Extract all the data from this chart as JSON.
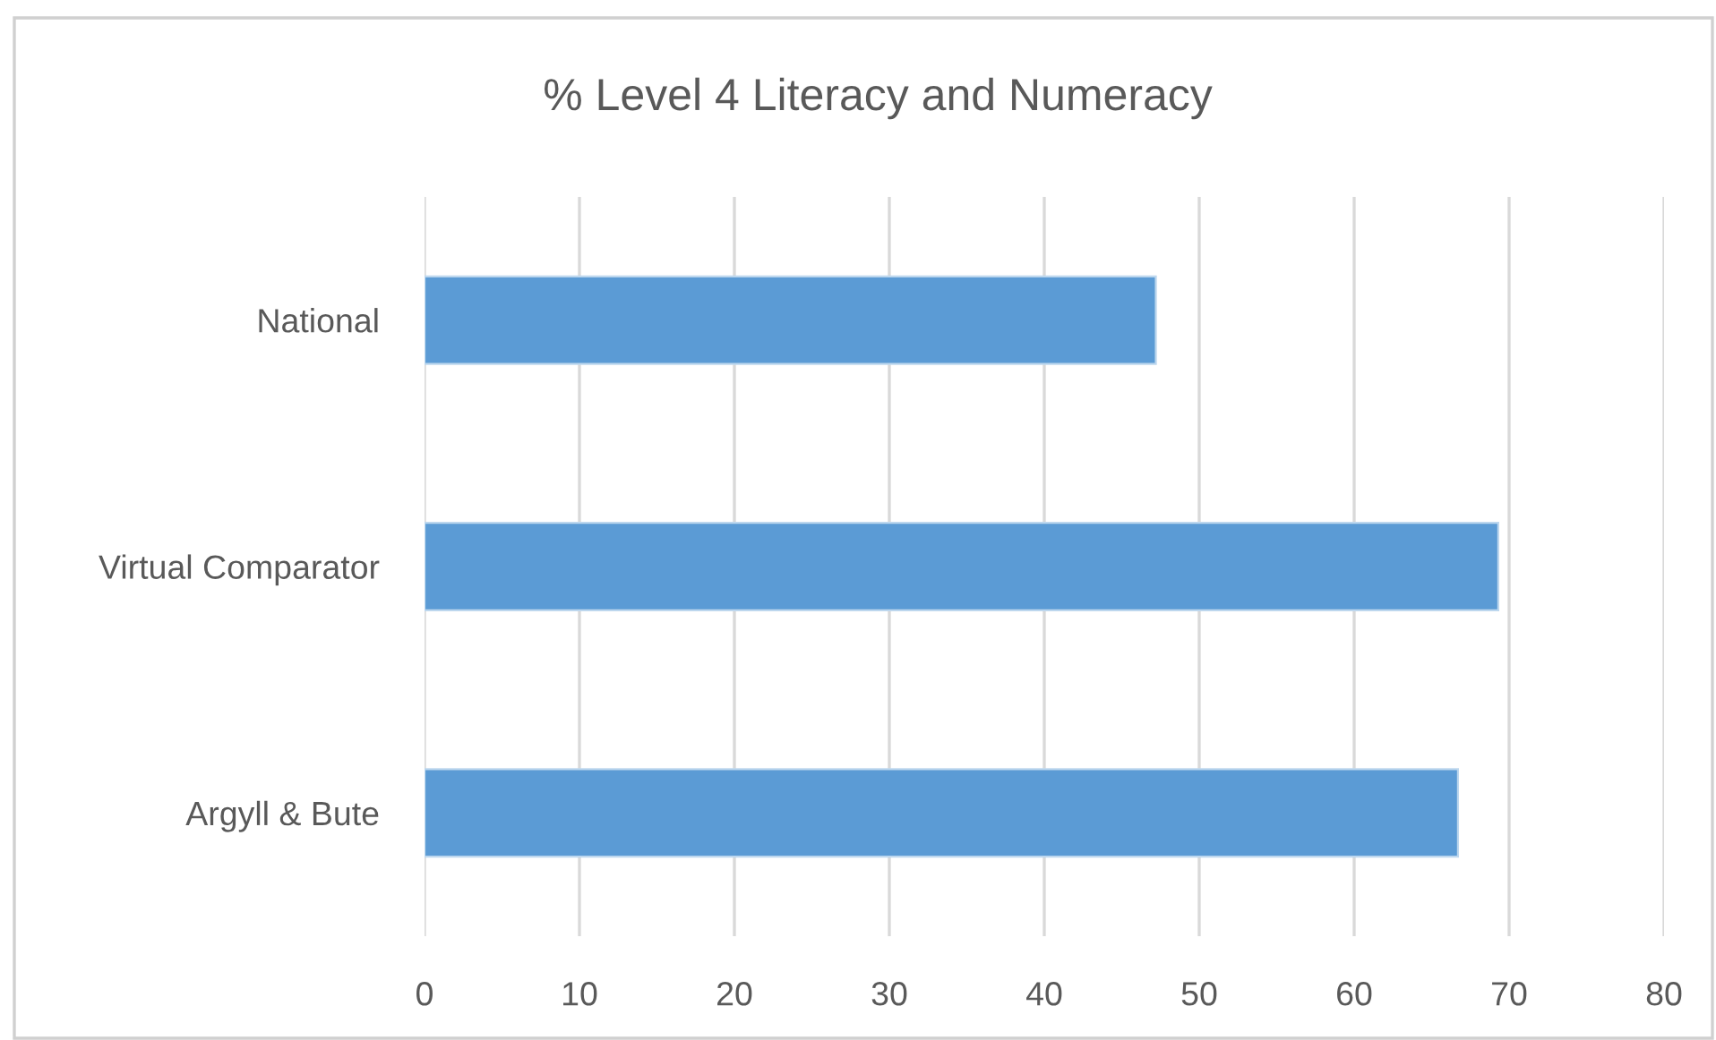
{
  "chart_data": {
    "type": "bar",
    "orientation": "horizontal",
    "title": "% Level 4 Literacy and Numeracy",
    "categories": [
      "National",
      "Virtual Comparator",
      "Argyll & Bute"
    ],
    "values": [
      47.2,
      69.3,
      66.7
    ],
    "color": "#5b9bd5",
    "xlim": [
      0,
      80
    ],
    "xticks": [
      0,
      10,
      20,
      30,
      40,
      50,
      60,
      70,
      80
    ],
    "grid": "x",
    "legend": false
  }
}
